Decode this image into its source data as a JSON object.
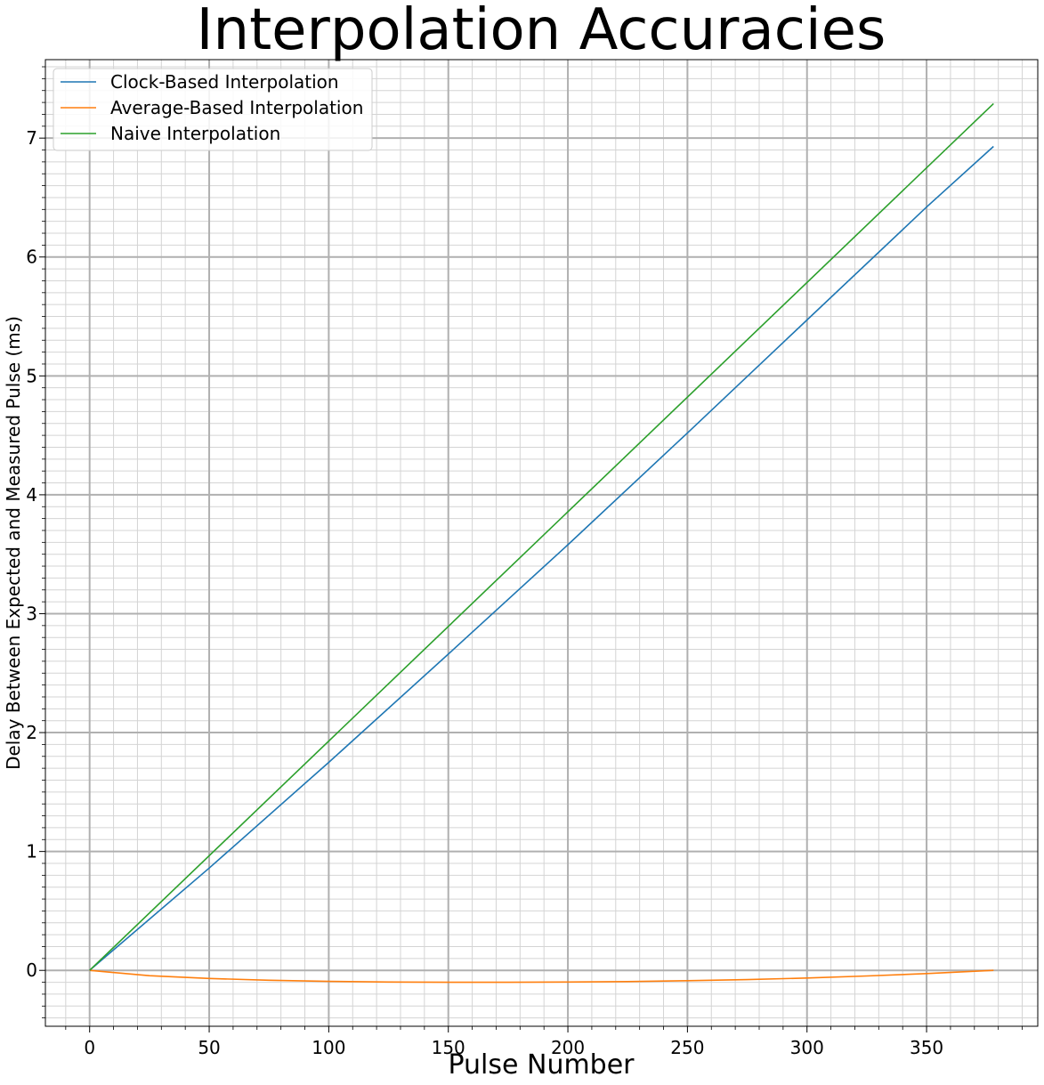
{
  "chart_data": {
    "type": "line",
    "title": "Interpolation Accuracies",
    "xlabel": "Pulse Number",
    "ylabel": "Delay Between Expected and Measured Pulse (ms)",
    "xlim": [
      -18.5,
      396.5
    ],
    "ylim": [
      -0.47,
      7.66
    ],
    "xticks": [
      0,
      50,
      100,
      150,
      200,
      250,
      300,
      350
    ],
    "yticks": [
      0,
      1,
      2,
      3,
      4,
      5,
      6,
      7
    ],
    "grid": "major and minor",
    "legend_position": "top-left",
    "series": [
      {
        "name": "Clock-Based Interpolation",
        "color": "#1f77b4",
        "x": [
          0,
          50,
          100,
          150,
          200,
          250,
          300,
          350,
          378
        ],
        "values": [
          0,
          0.86,
          1.75,
          2.66,
          3.58,
          4.52,
          5.47,
          6.42,
          6.93
        ]
      },
      {
        "name": "Average-Based Interpolation",
        "color": "#ff7f0e",
        "x": [
          0,
          25,
          50,
          75,
          100,
          125,
          150,
          175,
          200,
          225,
          250,
          275,
          300,
          325,
          350,
          378
        ],
        "values": [
          0,
          -0.045,
          -0.068,
          -0.083,
          -0.093,
          -0.098,
          -0.1,
          -0.1,
          -0.098,
          -0.094,
          -0.087,
          -0.078,
          -0.064,
          -0.047,
          -0.027,
          0
        ]
      },
      {
        "name": "Naive Interpolation",
        "color": "#2ca02c",
        "x": [
          0,
          378
        ],
        "values": [
          0,
          7.29
        ]
      }
    ]
  }
}
